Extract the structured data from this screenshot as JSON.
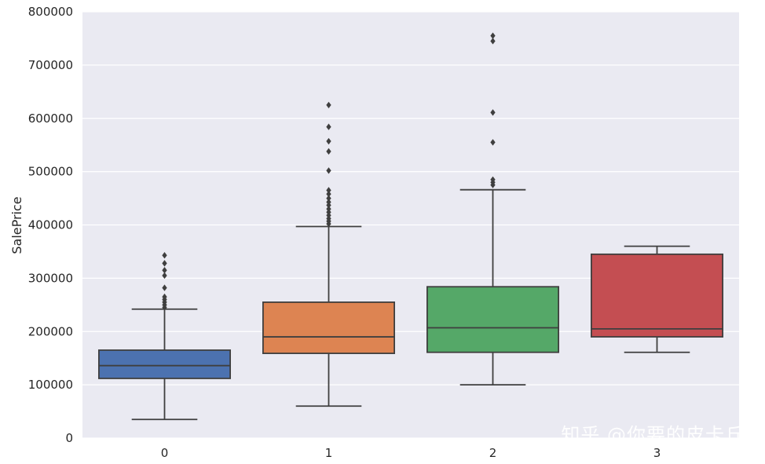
{
  "chart_data": {
    "type": "box",
    "xlabel": "",
    "ylabel": "SalePrice",
    "categories": [
      "0",
      "1",
      "2",
      "3"
    ],
    "ylim": [
      0,
      800000
    ],
    "yticks": [
      0,
      100000,
      200000,
      300000,
      400000,
      500000,
      600000,
      700000,
      800000
    ],
    "grid": true,
    "boxes": [
      {
        "category": "0",
        "color": "#4c72b0",
        "whisker_low": 35000,
        "q1": 112000,
        "median": 136000,
        "q3": 165000,
        "whisker_high": 242000,
        "outliers": [
          245000,
          250000,
          255000,
          260000,
          265000,
          282000,
          305000,
          315000,
          328000,
          343000
        ]
      },
      {
        "category": "1",
        "color": "#dd8452",
        "whisker_low": 60000,
        "q1": 159000,
        "median": 190000,
        "q3": 255000,
        "whisker_high": 397000,
        "outliers": [
          402000,
          407000,
          412000,
          418000,
          424000,
          430000,
          437000,
          443000,
          450000,
          458000,
          465000,
          502000,
          538000,
          557000,
          584000,
          625000
        ]
      },
      {
        "category": "2",
        "color": "#55a868",
        "whisker_low": 100000,
        "q1": 161000,
        "median": 207000,
        "q3": 284000,
        "whisker_high": 466000,
        "outliers": [
          475000,
          480000,
          485000,
          555000,
          611000,
          745000,
          755000
        ]
      },
      {
        "category": "3",
        "color": "#c44e52",
        "whisker_low": 161000,
        "q1": 190000,
        "median": 205000,
        "q3": 345000,
        "whisker_high": 360000,
        "outliers": []
      }
    ]
  },
  "watermark": "知乎 @你要的皮卡丘"
}
